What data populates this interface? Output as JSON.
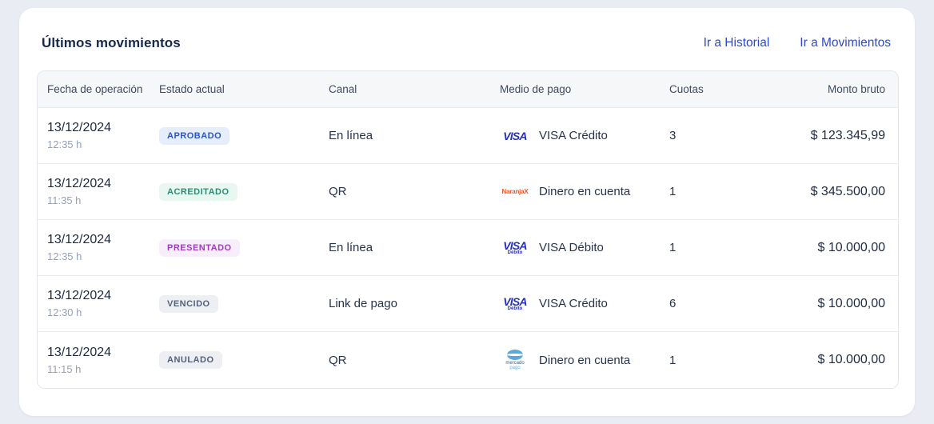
{
  "card": {
    "title": "Últimos movimientos",
    "links": [
      {
        "label": "Ir a Historial"
      },
      {
        "label": "Ir a Movimientos"
      }
    ]
  },
  "table": {
    "columns": [
      "Fecha de operación",
      "Estado actual",
      "Canal",
      "Medio de pago",
      "Cuotas",
      "Monto bruto"
    ],
    "rows": [
      {
        "date": "13/12/2024",
        "time": "12:35 h",
        "status": "APROBADO",
        "status_color": "blue",
        "channel": "En línea",
        "payment_logo": "visa",
        "payment_method": "VISA Crédito",
        "installments": "3",
        "amount": "$ 123.345,99"
      },
      {
        "date": "13/12/2024",
        "time": "11:35 h",
        "status": "ACREDITADO",
        "status_color": "green",
        "channel": "QR",
        "payment_logo": "naranjax",
        "payment_method": "Dinero en cuenta",
        "installments": "1",
        "amount": "$ 345.500,00"
      },
      {
        "date": "13/12/2024",
        "time": "12:35 h",
        "status": "PRESENTADO",
        "status_color": "purple",
        "channel": "En línea",
        "payment_logo": "visa-debito",
        "payment_method": "VISA Débito",
        "installments": "1",
        "amount": "$ 10.000,00"
      },
      {
        "date": "13/12/2024",
        "time": "12:30 h",
        "status": "VENCIDO",
        "status_color": "gray",
        "channel": "Link de pago",
        "payment_logo": "visa-debito",
        "payment_method": "VISA Crédito",
        "installments": "6",
        "amount": "$ 10.000,00"
      },
      {
        "date": "13/12/2024",
        "time": "11:15 h",
        "status": "ANULADO",
        "status_color": "gray",
        "channel": "QR",
        "payment_logo": "mercadopago",
        "payment_method": "Dinero en cuenta",
        "installments": "1",
        "amount": "$ 10.000,00"
      }
    ]
  },
  "logos": {
    "visa": {
      "text": "VISA"
    },
    "visa_debito": {
      "text": "VISA",
      "sub": "Débito"
    },
    "naranjax": {
      "text": "NaranjaX"
    },
    "mercadopago": {
      "text": "mercado",
      "sub": "pago"
    }
  },
  "colors": {
    "page_background": "#E9EDF3",
    "card_background": "#FFFFFF",
    "link_blue": "#2B4ACB",
    "title_navy": "#16294C",
    "badge_blue_text": "#2B54C8",
    "badge_blue_bg": "#E7EEFB",
    "badge_green_text": "#2E8C73",
    "badge_green_bg": "#E9F7F1",
    "badge_purple_text": "#A23AC4",
    "badge_purple_bg": "#F8EEFB",
    "badge_gray_text": "#53627C",
    "badge_gray_bg": "#EDEFF3",
    "visa_blue": "#2430BE",
    "naranjax_orange": "#F2572C",
    "mercadopago_blue": "#57A9E0"
  }
}
